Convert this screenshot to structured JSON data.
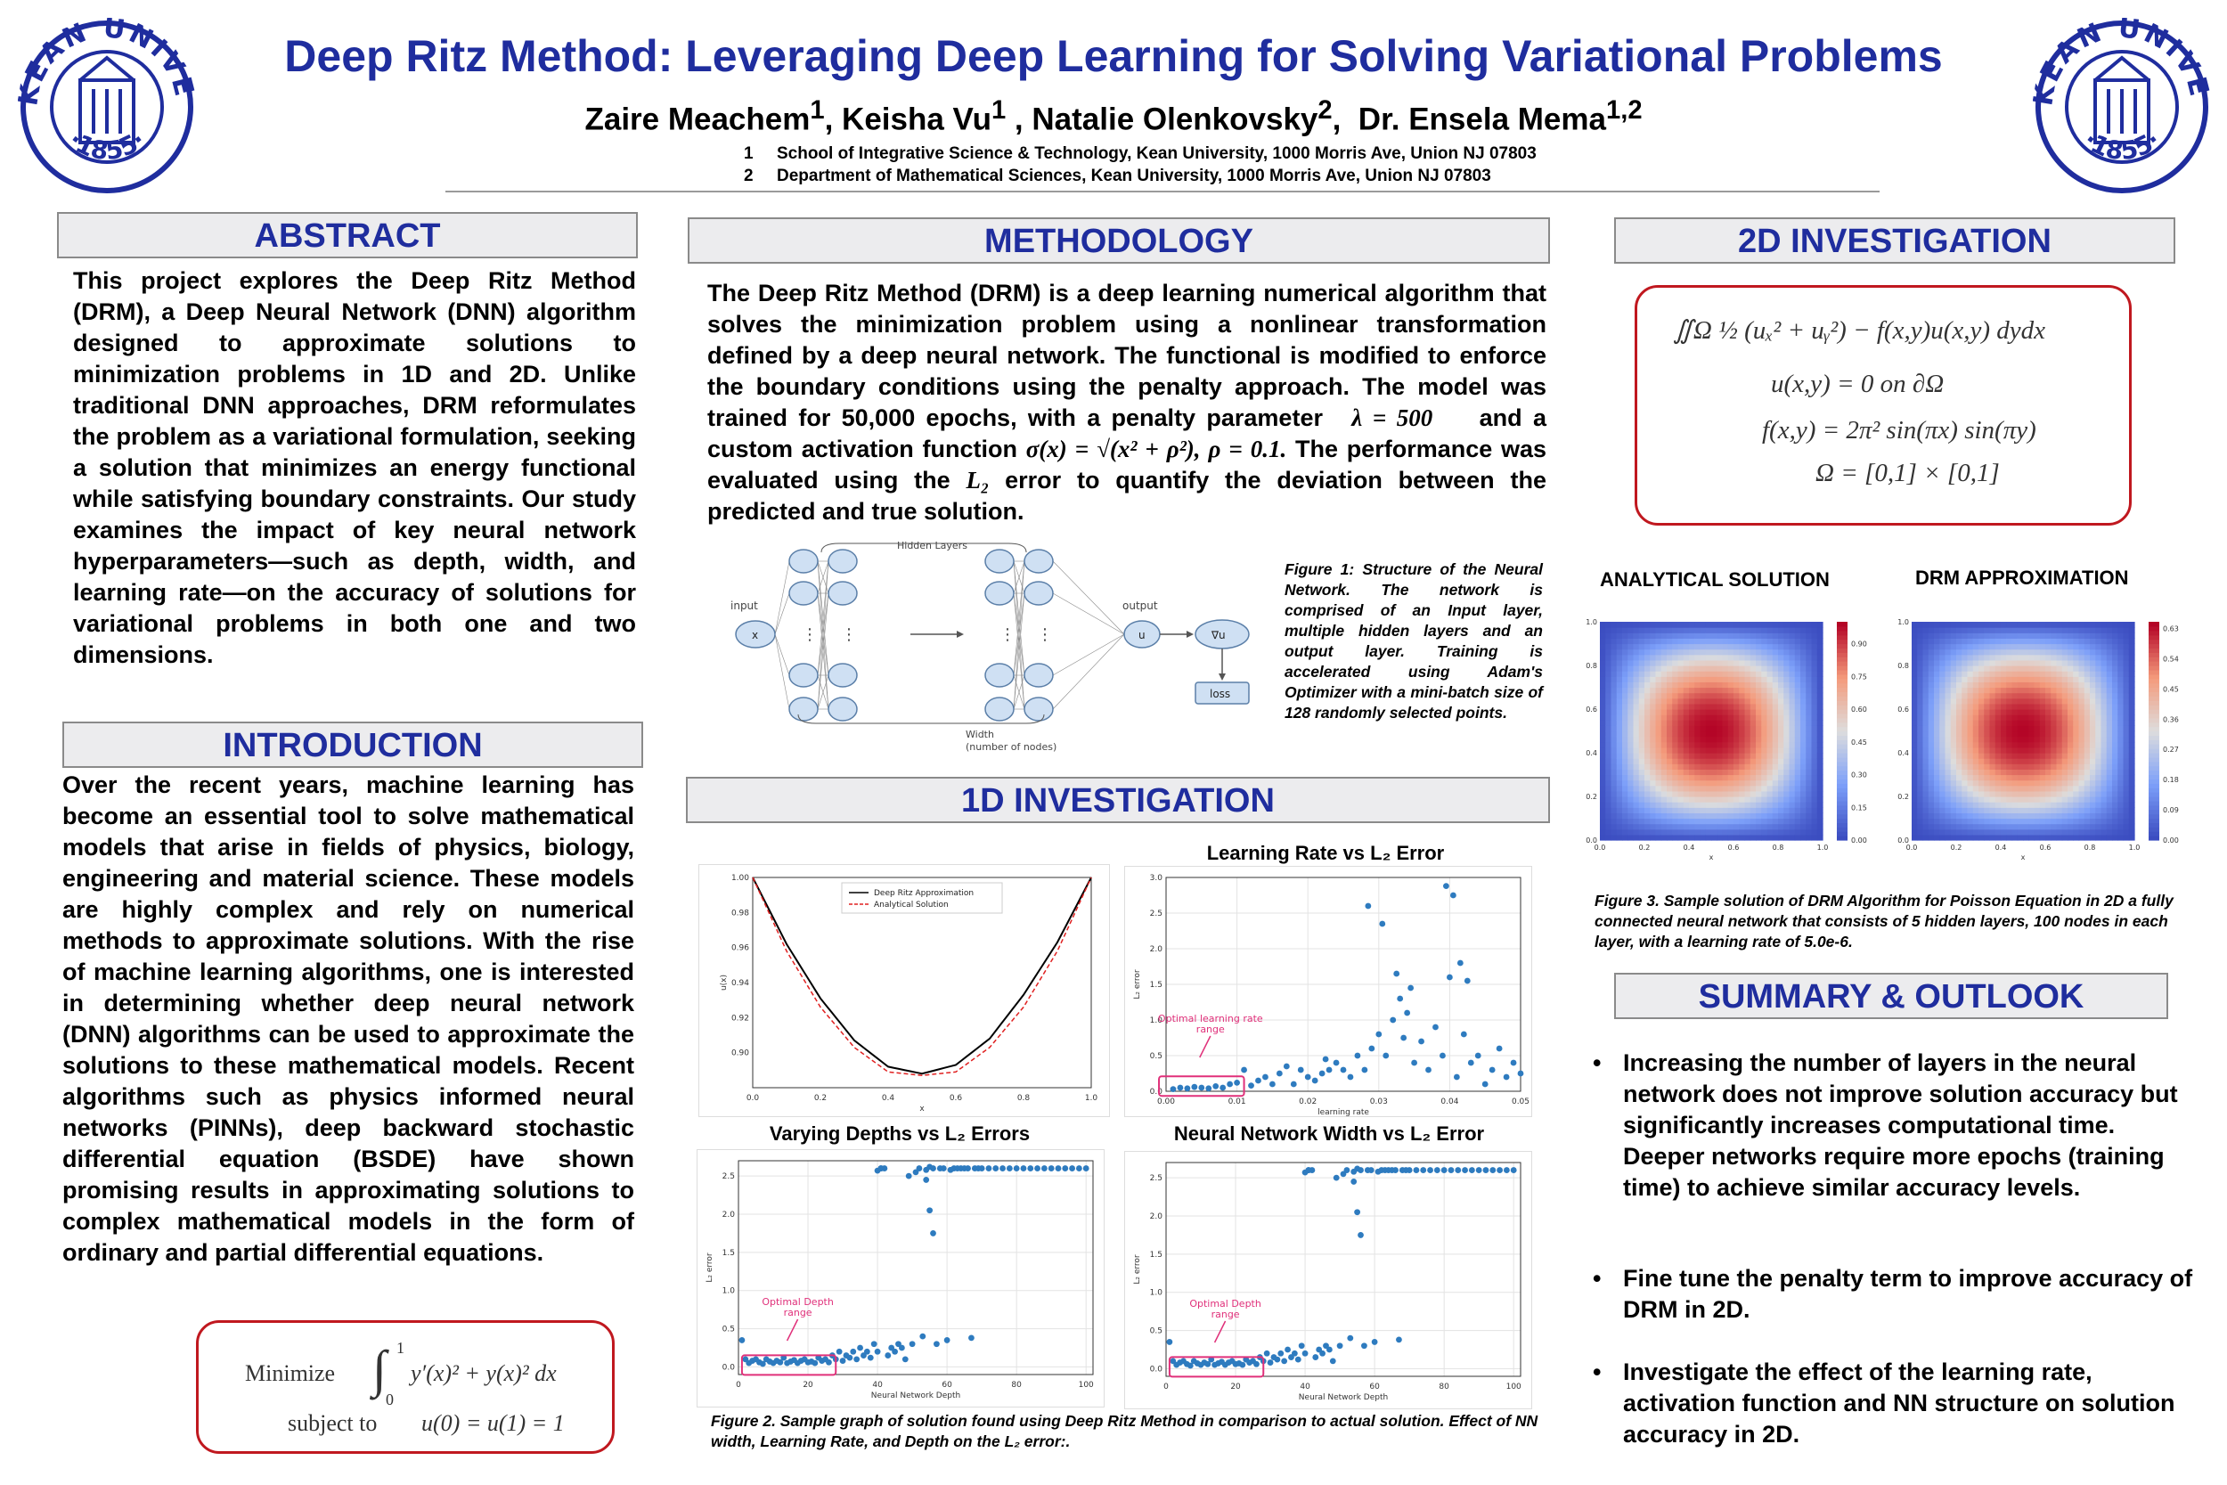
{
  "header": {
    "title": "Deep Ritz Method: Leveraging Deep Learning for Solving Variational Problems",
    "authors": [
      {
        "name": "Zaire Meachem",
        "sup": "1"
      },
      {
        "name": "Keisha Vu",
        "sup": "1"
      },
      {
        "name": "Natalie Olenkovsky",
        "sup": "2"
      },
      {
        "name": "Dr. Ensela Mema",
        "sup": "1,2"
      }
    ],
    "affiliations": [
      {
        "num": "1",
        "text": "School of Integrative Science & Technology, Kean University, 1000 Morris Ave, Union NJ 07803"
      },
      {
        "num": "2",
        "text": "Department of Mathematical Sciences, Kean University, 1000 Morris Ave, Union NJ 07803"
      }
    ],
    "seal": {
      "top": "KEAN UNIVERSITY",
      "year": "1855",
      "color": "#1f2d9e"
    }
  },
  "abstract": {
    "heading": "ABSTRACT",
    "text": "This project explores the Deep Ritz Method (DRM), a Deep Neural Network (DNN) algorithm designed to approximate solutions to minimization problems in 1D and 2D. Unlike traditional DNN approaches, DRM reformulates the problem as a variational formulation, seeking a solution that minimizes an energy functional while satisfying boundary constraints. Our study examines the impact of key neural network hyperparameters—such as depth, width, and learning rate—on the accuracy of solutions for variational problems in both one and two dimensions."
  },
  "introduction": {
    "heading": "INTRODUCTION",
    "text": "Over the recent years, machine learning has become an essential tool to solve mathematical models that arise in fields of physics, biology, engineering and material science. These models are highly complex and rely on numerical methods to approximate solutions. With the rise of machine learning algorithms, one is interested in determining whether deep neural network (DNN) algorithms can be used to approximate the solutions to these mathematical models. Recent algorithms such as physics informed neural networks (PINNs), deep backward stochastic differential equation (BSDE) have shown promising results in approximating solutions to complex mathematical models in the form of ordinary and partial differential equations.",
    "formula": {
      "line1_word": "Minimize",
      "integrand": "y′(x)² + y(x)² dx",
      "lower": "0",
      "upper": "1",
      "line2_word": "subject to",
      "line2": "u(0) = u(1) = 1"
    }
  },
  "methodology": {
    "heading": "METHODOLOGY",
    "text_part1": "The Deep Ritz Method (DRM) is a deep learning numerical algorithm that solves the minimization problem using a nonlinear transformation defined by a deep neural network. The functional is modified to enforce the boundary conditions using the penalty approach. The model was trained for 50,000 epochs, with a penalty parameter",
    "lambda": "λ = 500",
    "text_part2": "and a custom activation function",
    "sigma": "σ(x) = √(x² + ρ²),  ρ = 0.1.",
    "text_part3": "The performance was evaluated using the",
    "l2": "L₂",
    "text_part4": "error to quantify the deviation between the predicted  and true solution.",
    "diagram": {
      "hidden_layers": "Hidden Layers",
      "input": "input",
      "x": "x",
      "output": "output",
      "u": "u",
      "grad": "∇u",
      "loss": "loss",
      "width": "Width",
      "width_sub": "(number of nodes)",
      "dots": "⋮"
    },
    "caption": "Figure 1: Structure of the Neural Network. The network is comprised of an Input layer, multiple hidden layers and an output layer. Training is accelerated using Adam's Optimizer with a mini-batch size of 128 randomly selected points."
  },
  "investigation_1d": {
    "heading": "1D INVESTIGATION",
    "titles": {
      "lr": "Learning Rate vs L₂ Error",
      "depth": "Varying Depths vs L₂ Errors",
      "width": "Neural Network Width vs L₂ Error"
    },
    "caption": "Figure 2. Sample graph of solution found using Deep Ritz Method in comparison to actual solution. Effect of NN width, Learning Rate, and Depth on the L₂ error:."
  },
  "investigation_2d": {
    "heading": "2D INVESTIGATION",
    "formulas": [
      "∬Ω ½ (uₓ² + uᵧ²) − f(x,y)u(x,y) dydx",
      "u(x,y) = 0    on    ∂Ω",
      "f(x,y) = 2π² sin(πx) sin(πy)",
      "Ω = [0,1] × [0,1]"
    ],
    "label_analytical": "ANALYTICAL SOLUTION",
    "label_drm": "DRM APPROXIMATION",
    "caption": "Figure 3. Sample solution of DRM Algorithm for Poisson Equation in 2D a fully connected neural network that consists of 5 hidden layers, 100 nodes in each layer, with a learning rate of 5.0e-6."
  },
  "summary": {
    "heading": "SUMMARY & OUTLOOK",
    "bullets": [
      "Increasing the number of layers in the neural network does not improve solution accuracy but significantly increases computational time. Deeper networks require more epochs (training time) to achieve similar accuracy levels.",
      "Fine tune the penalty term to improve accuracy of DRM in 2D.",
      "Investigate the effect of the learning rate, activation function and NN structure on solution accuracy in 2D."
    ]
  },
  "chart_data": [
    {
      "type": "line",
      "ylabel": "u(x)",
      "xlabel": "x",
      "xlim": [
        0,
        1
      ],
      "ylim": [
        0.88,
        1.0
      ],
      "xticks": [
        "0.0",
        "0.2",
        "0.4",
        "0.6",
        "0.8",
        "1.0"
      ],
      "yticks": [
        "0.90",
        "0.92",
        "0.94",
        "0.96",
        "0.98",
        "1.00"
      ],
      "legend": "top-center",
      "grid": false,
      "series": [
        {
          "name": "Deep Ritz Approximation",
          "color": "#000000",
          "style": "solid",
          "x": [
            0,
            0.1,
            0.2,
            0.3,
            0.4,
            0.5,
            0.6,
            0.7,
            0.8,
            0.9,
            1.0
          ],
          "y": [
            1.0,
            0.962,
            0.931,
            0.907,
            0.892,
            0.888,
            0.893,
            0.908,
            0.933,
            0.963,
            1.0
          ]
        },
        {
          "name": "Analytical Solution",
          "color": "#e02020",
          "style": "dashed",
          "x": [
            0,
            0.1,
            0.2,
            0.3,
            0.4,
            0.5,
            0.6,
            0.7,
            0.8,
            0.9,
            1.0
          ],
          "y": [
            1.0,
            0.958,
            0.926,
            0.903,
            0.889,
            0.887,
            0.889,
            0.903,
            0.926,
            0.958,
            1.0
          ]
        }
      ]
    },
    {
      "type": "scatter",
      "title": "Learning Rate vs L₂ Error",
      "xlabel": "learning rate",
      "ylabel": "L₂ error",
      "xlim": [
        0,
        0.05
      ],
      "ylim": [
        0,
        3.0
      ],
      "xticks": [
        "0.00",
        "0.01",
        "0.02",
        "0.03",
        "0.04",
        "0.05"
      ],
      "yticks": [
        "0.0",
        "0.5",
        "1.0",
        "1.5",
        "2.0",
        "2.5",
        "3.0"
      ],
      "grid": true,
      "annotation": "Optimal learning rate range",
      "x": [
        0.001,
        0.002,
        0.003,
        0.004,
        0.005,
        0.006,
        0.007,
        0.008,
        0.009,
        0.01,
        0.011,
        0.012,
        0.013,
        0.014,
        0.015,
        0.016,
        0.017,
        0.018,
        0.019,
        0.02,
        0.021,
        0.022,
        0.023,
        0.024,
        0.025,
        0.026,
        0.027,
        0.028,
        0.029,
        0.03,
        0.031,
        0.032,
        0.033,
        0.034,
        0.035,
        0.036,
        0.037,
        0.038,
        0.039,
        0.04,
        0.041,
        0.042,
        0.043,
        0.044,
        0.045,
        0.046,
        0.047,
        0.048,
        0.049,
        0.05,
        0.0285,
        0.0305,
        0.0325,
        0.0345,
        0.0395,
        0.0405,
        0.0425,
        0.0415,
        0.0225,
        0.0335
      ],
      "y": [
        0.03,
        0.05,
        0.04,
        0.06,
        0.05,
        0.04,
        0.07,
        0.05,
        0.1,
        0.12,
        0.3,
        0.08,
        0.15,
        0.2,
        0.1,
        0.25,
        0.35,
        0.1,
        0.3,
        0.2,
        0.15,
        0.25,
        0.3,
        0.4,
        0.3,
        0.2,
        0.5,
        0.3,
        0.6,
        0.8,
        0.5,
        1.0,
        1.3,
        1.1,
        0.4,
        0.7,
        0.3,
        0.9,
        0.5,
        1.6,
        0.2,
        0.8,
        0.4,
        0.5,
        0.1,
        0.3,
        0.6,
        0.2,
        0.4,
        0.25,
        2.6,
        2.35,
        1.65,
        1.45,
        2.88,
        2.75,
        1.55,
        1.8,
        0.45,
        0.75
      ]
    },
    {
      "type": "scatter",
      "title": "Varying Depths vs L₂ Errors",
      "xlabel": "Neural Network Depth",
      "ylabel": "L₂ error",
      "xlim": [
        0,
        102
      ],
      "ylim": [
        -0.1,
        2.7
      ],
      "xticks": [
        "0",
        "20",
        "40",
        "60",
        "80",
        "100"
      ],
      "yticks": [
        "0.0",
        "0.5",
        "1.0",
        "1.5",
        "2.0",
        "2.5"
      ],
      "grid": true,
      "annotation": "Optimal Depth range",
      "x": [
        1,
        2,
        3,
        4,
        5,
        6,
        7,
        8,
        9,
        10,
        11,
        12,
        13,
        14,
        15,
        16,
        17,
        18,
        19,
        20,
        21,
        22,
        23,
        24,
        25,
        26,
        27,
        28,
        29,
        30,
        31,
        32,
        33,
        34,
        35,
        36,
        37,
        38,
        39,
        40,
        41,
        42,
        43,
        44,
        45,
        46,
        47,
        48,
        49,
        50,
        51,
        52,
        53,
        54,
        55,
        56,
        57,
        58,
        59,
        60,
        61,
        62,
        63,
        64,
        65,
        66,
        67,
        68,
        69,
        70,
        72,
        74,
        76,
        78,
        80,
        82,
        84,
        86,
        88,
        90,
        92,
        94,
        96,
        98,
        100,
        40,
        41,
        54,
        55,
        56
      ],
      "y": [
        0.35,
        0.1,
        0.05,
        0.08,
        0.1,
        0.06,
        0.04,
        0.1,
        0.07,
        0.05,
        0.08,
        0.06,
        0.12,
        0.05,
        0.07,
        0.09,
        0.05,
        0.08,
        0.1,
        0.06,
        0.07,
        0.05,
        0.12,
        0.08,
        0.1,
        0.06,
        0.15,
        0.1,
        0.2,
        0.08,
        0.15,
        0.12,
        0.2,
        0.1,
        0.25,
        0.15,
        0.2,
        0.12,
        0.3,
        0.2,
        2.6,
        2.6,
        0.15,
        0.25,
        0.2,
        0.3,
        0.25,
        0.1,
        2.5,
        0.3,
        2.55,
        2.6,
        0.4,
        2.58,
        2.62,
        2.6,
        0.3,
        2.6,
        2.6,
        0.35,
        2.58,
        2.6,
        2.6,
        2.6,
        2.6,
        2.6,
        0.38,
        2.6,
        2.6,
        2.6,
        2.6,
        2.6,
        2.6,
        2.6,
        2.6,
        2.6,
        2.6,
        2.6,
        2.6,
        2.6,
        2.6,
        2.6,
        2.6,
        2.6,
        2.6,
        2.57,
        2.6,
        2.45,
        2.05,
        1.75
      ]
    },
    {
      "type": "scatter",
      "title": "Neural Network Width vs L₂ Error",
      "xlabel": "Neural Network Depth",
      "ylabel": "L₂ error",
      "xlim": [
        0,
        102
      ],
      "ylim": [
        -0.1,
        2.7
      ],
      "xticks": [
        "0",
        "20",
        "40",
        "60",
        "80",
        "100"
      ],
      "yticks": [
        "0.0",
        "0.5",
        "1.0",
        "1.5",
        "2.0",
        "2.5"
      ],
      "grid": true,
      "annotation": "Optimal Depth range",
      "x": [
        1,
        2,
        3,
        4,
        5,
        6,
        7,
        8,
        9,
        10,
        11,
        12,
        13,
        14,
        15,
        16,
        17,
        18,
        19,
        20,
        21,
        22,
        23,
        24,
        25,
        26,
        27,
        28,
        29,
        30,
        31,
        32,
        33,
        34,
        35,
        36,
        37,
        38,
        39,
        40,
        41,
        42,
        43,
        44,
        45,
        46,
        47,
        48,
        49,
        50,
        51,
        52,
        53,
        54,
        55,
        56,
        57,
        58,
        59,
        60,
        61,
        62,
        63,
        64,
        65,
        66,
        67,
        68,
        69,
        70,
        72,
        74,
        76,
        78,
        80,
        82,
        84,
        86,
        88,
        90,
        92,
        94,
        96,
        98,
        100,
        40,
        41,
        54,
        55,
        56
      ],
      "y": [
        0.35,
        0.1,
        0.05,
        0.08,
        0.1,
        0.06,
        0.04,
        0.1,
        0.07,
        0.05,
        0.08,
        0.06,
        0.12,
        0.05,
        0.07,
        0.09,
        0.05,
        0.08,
        0.1,
        0.06,
        0.07,
        0.05,
        0.12,
        0.08,
        0.1,
        0.06,
        0.15,
        0.1,
        0.2,
        0.08,
        0.15,
        0.12,
        0.2,
        0.1,
        0.25,
        0.15,
        0.2,
        0.12,
        0.3,
        0.2,
        2.6,
        2.6,
        0.15,
        0.25,
        0.2,
        0.3,
        0.25,
        0.1,
        2.5,
        0.3,
        2.55,
        2.6,
        0.4,
        2.58,
        2.62,
        2.6,
        0.3,
        2.6,
        2.6,
        0.35,
        2.58,
        2.6,
        2.6,
        2.6,
        2.6,
        2.6,
        0.38,
        2.6,
        2.6,
        2.6,
        2.6,
        2.6,
        2.6,
        2.6,
        2.6,
        2.6,
        2.6,
        2.6,
        2.6,
        2.6,
        2.6,
        2.6,
        2.6,
        2.6,
        2.6,
        2.57,
        2.6,
        2.45,
        2.05,
        1.75
      ]
    },
    {
      "type": "heatmap",
      "title": "ANALYTICAL SOLUTION",
      "xlabel": "x",
      "xlim": [
        0,
        1
      ],
      "ylim": [
        0,
        1
      ],
      "xticks": [
        "0.0",
        "0.2",
        "0.4",
        "0.6",
        "0.8",
        "1.0"
      ],
      "yticks": [
        "0.0",
        "0.2",
        "0.4",
        "0.6",
        "0.8",
        "1.0"
      ],
      "colorbar_ticks": [
        "0.00",
        "0.15",
        "0.30",
        "0.45",
        "0.60",
        "0.75",
        "0.90"
      ],
      "colorbar_range": [
        0,
        1.0
      ],
      "function": "sin(pi x) sin(pi y)"
    },
    {
      "type": "heatmap",
      "title": "DRM APPROXIMATION",
      "xlabel": "x",
      "xlim": [
        0,
        1
      ],
      "ylim": [
        0,
        1
      ],
      "xticks": [
        "0.0",
        "0.2",
        "0.4",
        "0.6",
        "0.8",
        "1.0"
      ],
      "yticks": [
        "0.0",
        "0.2",
        "0.4",
        "0.6",
        "0.8",
        "1.0"
      ],
      "colorbar_ticks": [
        "0.00",
        "0.09",
        "0.18",
        "0.27",
        "0.36",
        "0.45",
        "0.54",
        "0.63"
      ],
      "colorbar_range": [
        0,
        0.65
      ],
      "function": "0.63 sin(pi x) sin(pi y)"
    }
  ]
}
